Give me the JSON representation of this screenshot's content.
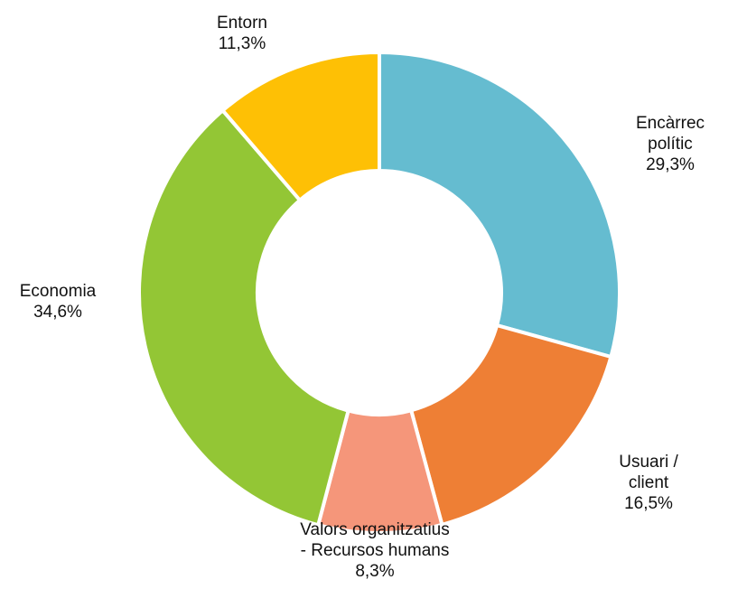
{
  "chart_data": {
    "type": "donut",
    "categories": [
      "Encàrrec polític",
      "Usuari / client",
      "Valors organitzatius\n- Recursos humans",
      "Economia",
      "Entorn"
    ],
    "values": [
      29.3,
      16.5,
      8.3,
      34.6,
      11.3
    ],
    "value_labels": [
      "29,3%",
      "16,5%",
      "8,3%",
      "34,6%",
      "11,3%"
    ],
    "colors": [
      "#65bcd0",
      "#ee7f35",
      "#f5967a",
      "#93c635",
      "#fec005"
    ]
  }
}
